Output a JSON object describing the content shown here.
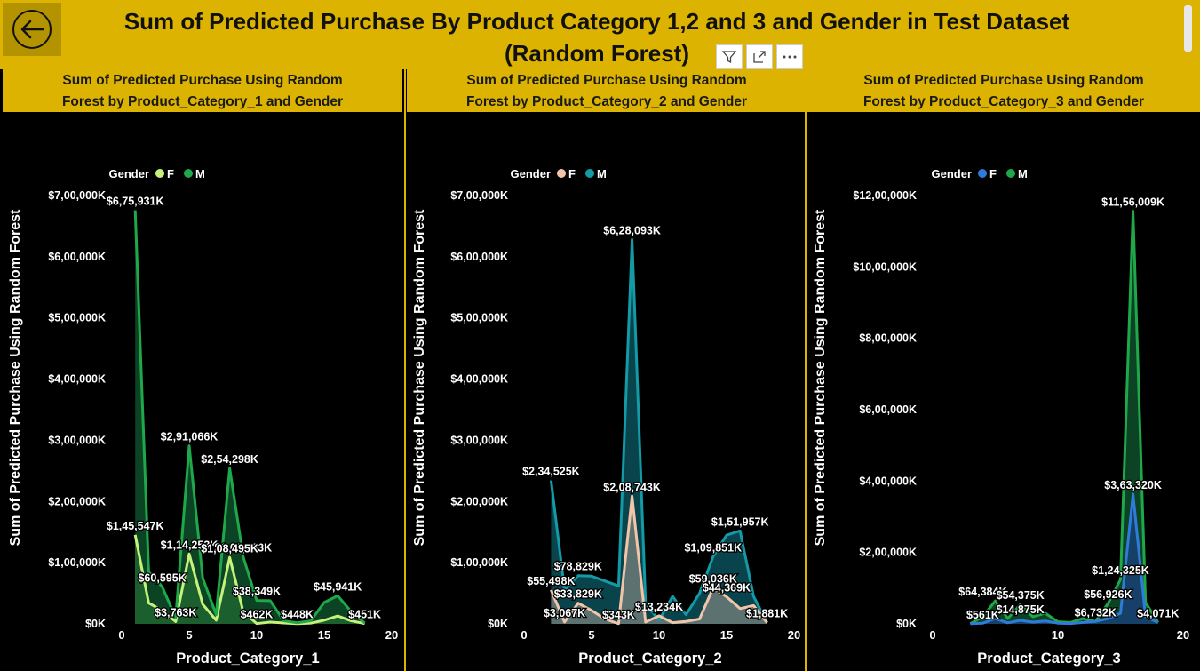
{
  "header": {
    "title_line1": "Sum of Predicted Purchase By Product Category 1,2 and 3 and Gender in Test Dataset",
    "title_line2": "(Random Forest)",
    "back_icon": "back-arrow-icon",
    "toolbar": [
      "filter-icon",
      "focus-mode-icon",
      "more-options-icon"
    ]
  },
  "colors": {
    "header_bg": "#dbb300",
    "panel_bg": "#000000"
  },
  "chart_data": [
    {
      "type": "area",
      "title_line1": "Sum of Predicted Purchase Using Random",
      "title_line2": "Forest by Product_Category_1 and Gender",
      "xlabel": "Product_Category_1",
      "ylabel": "Sum of Predicted Purchase Using Random Forest",
      "legend_title": "Gender",
      "legend_position": "top-center",
      "xlim": [
        0,
        20
      ],
      "x_ticks": [
        "0",
        "5",
        "10",
        "15",
        "20"
      ],
      "ylim": [
        0,
        700000
      ],
      "y_ticks": [
        "$0K",
        "$1,00,000K",
        "$2,00,000K",
        "$3,00,000K",
        "$4,00,000K",
        "$5,00,000K",
        "$6,00,000K",
        "$7,00,000K"
      ],
      "series": [
        {
          "name": "F",
          "color": "#c7f27a",
          "fill": "#7ed957",
          "x": [
            1,
            2,
            3,
            4,
            5,
            6,
            7,
            8,
            9,
            10,
            11,
            12,
            13,
            14,
            15,
            16,
            17,
            18
          ],
          "y": [
            145547,
            34000,
            22000,
            3763,
            114253,
            32000,
            6000,
            108495,
            20000,
            462,
            3000,
            1500,
            448,
            1200,
            6000,
            13000,
            5000,
            451
          ]
        },
        {
          "name": "M",
          "color": "#1fa84a",
          "fill": "#0d4f2a",
          "x": [
            1,
            2,
            3,
            4,
            5,
            6,
            7,
            8,
            9,
            10,
            11,
            12,
            13,
            14,
            15,
            16,
            17,
            18
          ],
          "y": [
            675931,
            85000,
            60595,
            10000,
            291066,
            75000,
            15000,
            254298,
            109683,
            38349,
            38000,
            5000,
            1800,
            5000,
            35000,
            45941,
            20000,
            1500
          ]
        }
      ],
      "labels": [
        {
          "text": "$6,75,931K",
          "x": 1,
          "y": 675931
        },
        {
          "text": "$2,91,066K",
          "x": 5,
          "y": 291066
        },
        {
          "text": "$2,54,298K",
          "x": 8,
          "y": 254298
        },
        {
          "text": "$1,45,547K",
          "x": 1,
          "y": 145547
        },
        {
          "text": "$1,14,253K",
          "x": 5,
          "y": 114253
        },
        {
          "text": "$1,09,683K",
          "x": 9,
          "y": 109683
        },
        {
          "text": "$1,08,495K",
          "x": 8,
          "y": 108495
        },
        {
          "text": "$60,595K",
          "x": 3,
          "y": 60595
        },
        {
          "text": "$38,349K",
          "x": 10,
          "y": 38349
        },
        {
          "text": "$45,941K",
          "x": 16,
          "y": 45941
        },
        {
          "text": "$3,763K",
          "x": 4,
          "y": 3763
        },
        {
          "text": "$462K",
          "x": 10,
          "y": 462
        },
        {
          "text": "$448K",
          "x": 13,
          "y": 448
        },
        {
          "text": "$451K",
          "x": 18,
          "y": 451
        }
      ]
    },
    {
      "type": "area",
      "title_line1": "Sum of Predicted Purchase Using Random",
      "title_line2": "Forest by Product_Category_2 and Gender",
      "xlabel": "Product_Category_2",
      "ylabel": "Sum of Predicted Purchase Using Random Forest",
      "legend_title": "Gender",
      "legend_position": "top-center",
      "xlim": [
        0,
        20
      ],
      "x_ticks": [
        "0",
        "5",
        "10",
        "15",
        "20"
      ],
      "ylim": [
        0,
        700000
      ],
      "y_ticks": [
        "$0K",
        "$1,00,000K",
        "$2,00,000K",
        "$3,00,000K",
        "$4,00,000K",
        "$5,00,000K",
        "$6,00,000K",
        "$7,00,000K"
      ],
      "series": [
        {
          "name": "M",
          "color": "#139aa6",
          "fill": "#0b4f58",
          "x": [
            2,
            3,
            4,
            5,
            6,
            7,
            8,
            9,
            10,
            11,
            12,
            13,
            14,
            15,
            16,
            17,
            18
          ],
          "y": [
            234525,
            55498,
            78829,
            78000,
            70000,
            62000,
            628093,
            33000,
            6000,
            45000,
            15000,
            50000,
            109851,
            145000,
            151957,
            45000,
            1881
          ]
        },
        {
          "name": "F",
          "color": "#f2c4a8",
          "fill": "#6a7a78",
          "x": [
            2,
            3,
            4,
            5,
            6,
            7,
            8,
            9,
            10,
            11,
            12,
            13,
            14,
            15,
            16,
            17,
            18
          ],
          "y": [
            55498,
            3067,
            33829,
            22000,
            8000,
            343,
            208743,
            3000,
            13234,
            2000,
            4000,
            8000,
            59036,
            44369,
            25000,
            30000,
            1881
          ]
        }
      ],
      "labels": [
        {
          "text": "$6,28,093K",
          "x": 8,
          "y": 628093
        },
        {
          "text": "$2,34,525K",
          "x": 2,
          "y": 234525
        },
        {
          "text": "$2,08,743K",
          "x": 8,
          "y": 208743
        },
        {
          "text": "$1,51,957K",
          "x": 16,
          "y": 151957
        },
        {
          "text": "$1,09,851K",
          "x": 14,
          "y": 109851
        },
        {
          "text": "$78,829K",
          "x": 4,
          "y": 78829
        },
        {
          "text": "$55,498K",
          "x": 2,
          "y": 55498
        },
        {
          "text": "$59,036K",
          "x": 14,
          "y": 59036
        },
        {
          "text": "$33,829K",
          "x": 4,
          "y": 33829
        },
        {
          "text": "$44,369K",
          "x": 15,
          "y": 44369
        },
        {
          "text": "$3,067K",
          "x": 3,
          "y": 3067
        },
        {
          "text": "$343K",
          "x": 7,
          "y": 343
        },
        {
          "text": "$13,234K",
          "x": 10,
          "y": 13234
        },
        {
          "text": "$1,881K",
          "x": 18,
          "y": 1881
        }
      ]
    },
    {
      "type": "area",
      "title_line1": "Sum of Predicted Purchase Using Random",
      "title_line2": "Forest by Product_Category_3 and Gender",
      "xlabel": "Product_Category_3",
      "ylabel": "Sum of Predicted Purchase Using Random Forest",
      "legend_title": "Gender",
      "legend_position": "top-center",
      "xlim": [
        0,
        20
      ],
      "x_ticks": [
        "0",
        "10",
        "20"
      ],
      "ylim": [
        0,
        1200000
      ],
      "y_ticks": [
        "$0K",
        "$2,00,000K",
        "$4,00,000K",
        "$6,00,000K",
        "$8,00,000K",
        "$10,00,000K",
        "$12,00,000K"
      ],
      "series": [
        {
          "name": "M",
          "color": "#1fa84a",
          "fill": "#0d4f2a",
          "x": [
            3,
            4,
            5,
            6,
            7,
            8,
            9,
            10,
            11,
            12,
            13,
            14,
            15,
            16,
            17,
            18
          ],
          "y": [
            561,
            20000,
            64384,
            14875,
            54375,
            20000,
            30000,
            6000,
            4000,
            15000,
            6732,
            56926,
            124325,
            1156009,
            60000,
            4071
          ]
        },
        {
          "name": "F",
          "color": "#2f7bd8",
          "fill": "#1a3f75",
          "x": [
            3,
            4,
            5,
            6,
            7,
            8,
            9,
            10,
            11,
            12,
            13,
            14,
            15,
            16,
            17,
            18
          ],
          "y": [
            561,
            2000,
            14875,
            3000,
            10000,
            5000,
            8000,
            2000,
            1000,
            4000,
            6732,
            15000,
            30000,
            363320,
            20000,
            4071
          ]
        }
      ],
      "labels": [
        {
          "text": "$11,56,009K",
          "x": 16,
          "y": 1156009
        },
        {
          "text": "$3,63,320K",
          "x": 16,
          "y": 363320
        },
        {
          "text": "$1,24,325K",
          "x": 15,
          "y": 124325
        },
        {
          "text": "$64,384K",
          "x": 4,
          "y": 64384
        },
        {
          "text": "$54,375K",
          "x": 7,
          "y": 54375
        },
        {
          "text": "$56,926K",
          "x": 14,
          "y": 56926
        },
        {
          "text": "$14,875K",
          "x": 7,
          "y": 14875
        },
        {
          "text": "$561K",
          "x": 4,
          "y": 561
        },
        {
          "text": "$6,732K",
          "x": 13,
          "y": 6732
        },
        {
          "text": "$4,071K",
          "x": 18,
          "y": 4071
        }
      ]
    }
  ]
}
